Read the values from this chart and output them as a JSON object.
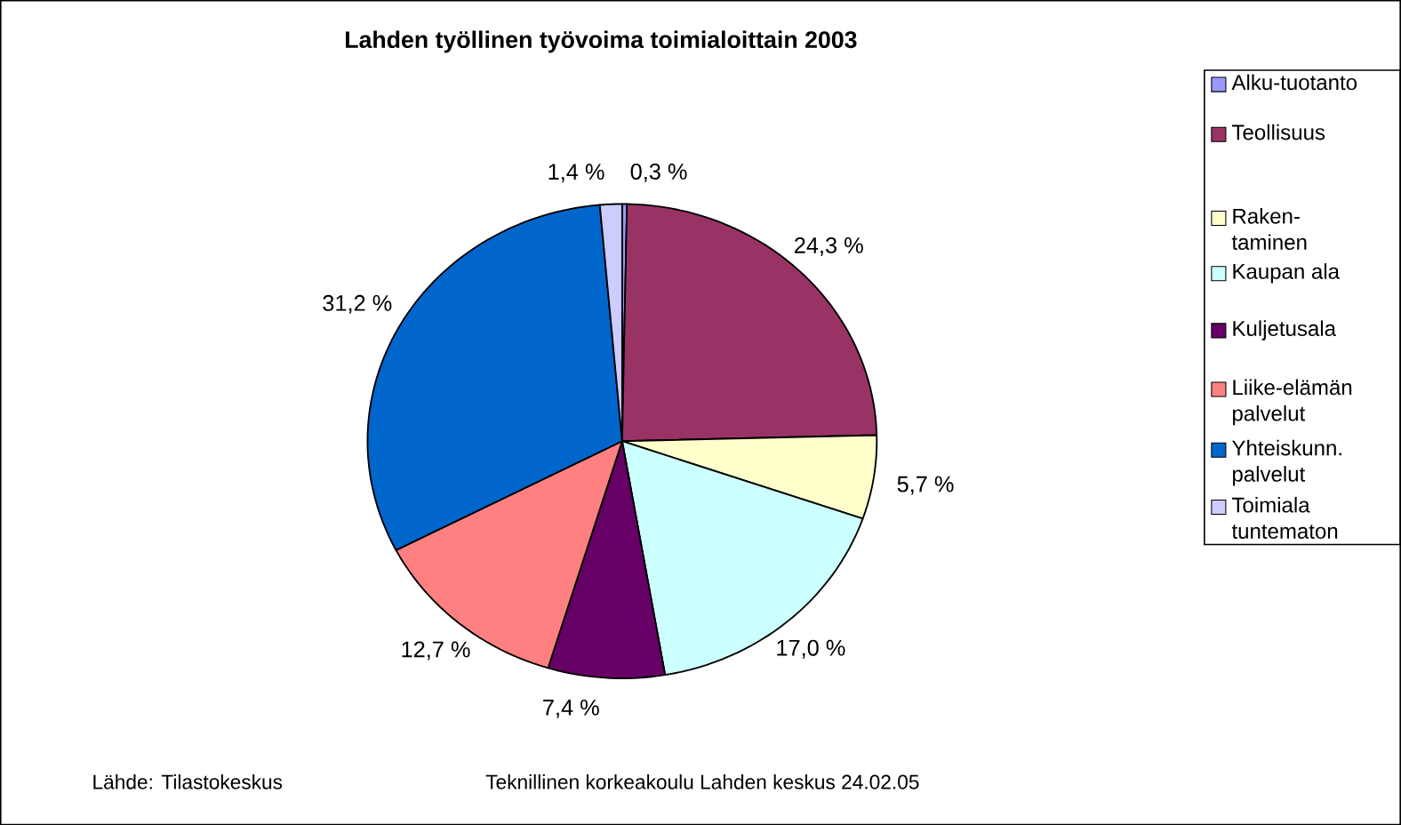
{
  "chart_data": {
    "type": "pie",
    "title": "Lahden työllinen työvoima toimialoittain 2003",
    "categories": [
      "Alku-tuotanto",
      "Teollisuus",
      "Raken-taminen",
      "Kaupan ala",
      "Kuljetusala",
      "Liike-elämän palvelut",
      "Yhteiskunn. palvelut",
      "Toimiala tuntematon"
    ],
    "values": [
      0.3,
      24.3,
      5.7,
      17.0,
      7.4,
      12.7,
      31.2,
      1.4
    ],
    "colors": [
      "#9999ff",
      "#993366",
      "#ffffcc",
      "#ccffff",
      "#660066",
      "#ff8080",
      "#0066cc",
      "#ccccff"
    ],
    "value_labels": [
      "0,3 %",
      "24,3 %",
      "5,7 %",
      "17,0 %",
      "7,4 %",
      "12,7 %",
      "31,2 %",
      "1,4 %"
    ],
    "legend": "right",
    "annotations": [
      "Lähde: Tilastokeskus",
      "Teknillinen korkeakoulu Lahden keskus 24.02.05"
    ]
  }
}
